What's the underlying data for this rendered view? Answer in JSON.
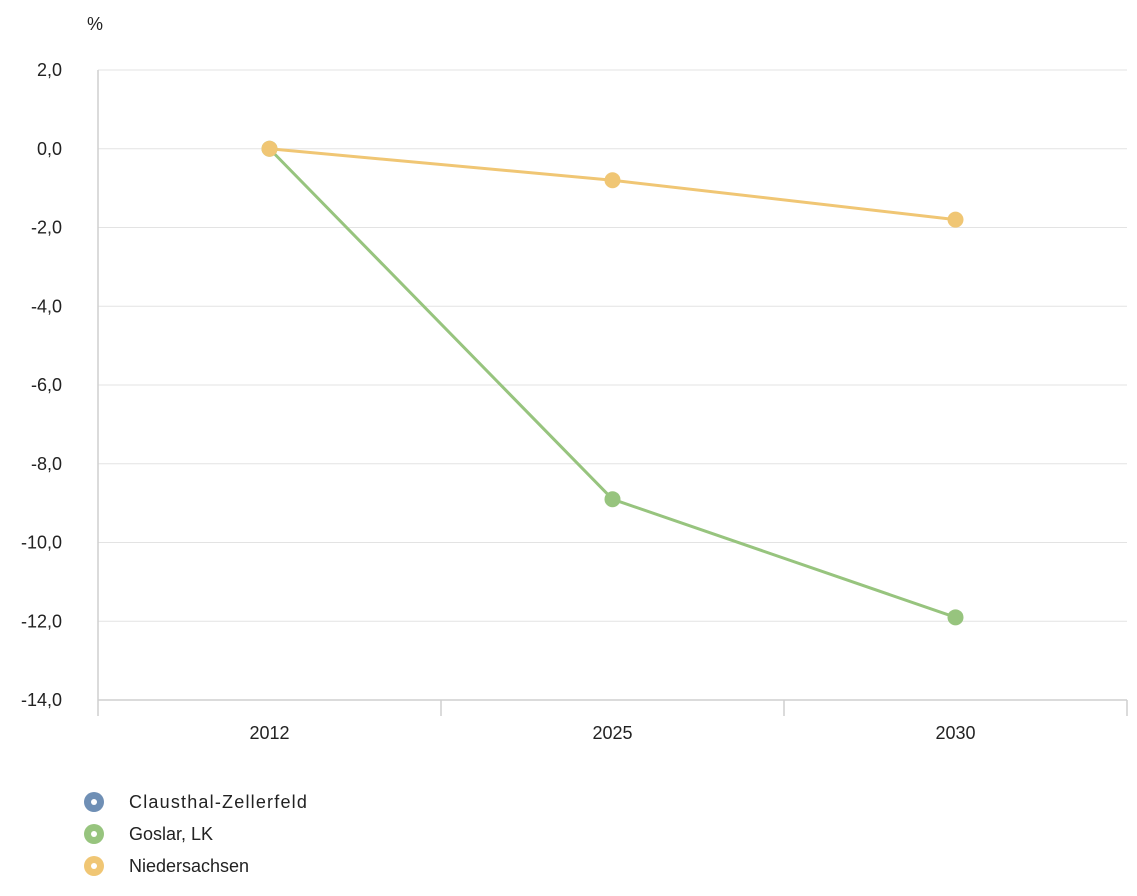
{
  "chart_data": {
    "type": "line",
    "unit": "%",
    "categories": [
      "2012",
      "2025",
      "2030"
    ],
    "ylim": [
      -14,
      2
    ],
    "yticks": [
      "2,0",
      "0,0",
      "-2,0",
      "-4,0",
      "-6,0",
      "-8,0",
      "-10,0",
      "-12,0",
      "-14,0"
    ],
    "grid": true,
    "legend_position": "bottom-left",
    "series": [
      {
        "name": "Clausthal-Zellerfeld",
        "color": "#6f8fb5",
        "values": [
          null,
          null,
          null
        ]
      },
      {
        "name": "Goslar, LK",
        "color": "#97c47e",
        "values": [
          0.0,
          -8.9,
          -11.9
        ]
      },
      {
        "name": "Niedersachsen",
        "color": "#f0c674",
        "values": [
          0.0,
          -0.8,
          -1.8
        ]
      }
    ]
  }
}
